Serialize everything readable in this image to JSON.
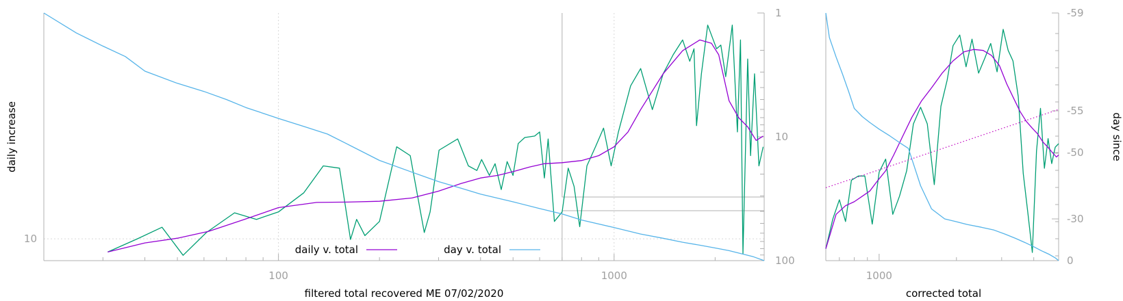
{
  "chart_data": [
    {
      "type": "line",
      "panel": "main",
      "xlabel": "filtered total recovered ME 07/02/2020",
      "ylabel": "daily increase",
      "y2label": "",
      "x_scale": "log",
      "y_scale": "log",
      "xlim": [
        20,
        2800
      ],
      "ylim": [
        7.2,
        300
      ],
      "x_ticks": [
        100,
        1000
      ],
      "x_tick_labels": [
        "100",
        "1000"
      ],
      "y_ticks": [
        10
      ],
      "y_tick_labels": [
        "10"
      ],
      "y2_ticks": [
        1,
        10,
        100
      ],
      "y2_tick_labels": [
        "1",
        "10",
        "100"
      ],
      "y2lim_reversed": [
        1,
        100
      ],
      "grid": true,
      "legend": {
        "position": "bottom-center",
        "entries": [
          "daily v. total",
          "day v. total"
        ]
      },
      "series": [
        {
          "name": "",
          "color": "#009e73",
          "axis": "y",
          "x": [
            31,
            38,
            45,
            52,
            61,
            74,
            86,
            100,
            119,
            136,
            152,
            164,
            171,
            181,
            200,
            225,
            247,
            272,
            283,
            301,
            342,
            368,
            390,
            403,
            425,
            442,
            461,
            480,
            500,
            518,
            542,
            580,
            600,
            620,
            636,
            664,
            700,
            730,
            760,
            790,
            830,
            880,
            930,
            980,
            1030,
            1120,
            1200,
            1300,
            1400,
            1500,
            1600,
            1680,
            1730,
            1760,
            1820,
            1900,
            2020,
            2080,
            2150,
            2250,
            2330,
            2380,
            2420,
            2500,
            2550,
            2620,
            2700,
            2780
          ],
          "y": [
            8.2,
            10,
            11.9,
            7.8,
            11,
            14.8,
            13.4,
            15,
            20,
            30,
            29,
            9.9,
            13.4,
            10.5,
            13,
            40,
            35,
            11,
            15,
            38,
            45,
            30,
            28,
            33,
            26,
            31,
            21,
            32,
            26,
            42,
            46,
            47,
            50,
            25,
            45,
            13,
            15,
            29,
            22,
            12,
            30,
            40,
            53,
            30,
            50,
            100,
            130,
            70,
            120,
            160,
            200,
            145,
            175,
            55,
            120,
            250,
            175,
            185,
            115,
            250,
            50,
            200,
            8,
            150,
            35,
            120,
            30,
            40
          ]
        },
        {
          "name": "daily v. total",
          "color": "#9400d3",
          "axis": "y",
          "x": [
            31,
            40,
            50,
            62,
            80,
            100,
            130,
            160,
            200,
            250,
            300,
            350,
            400,
            450,
            500,
            560,
            620,
            700,
            800,
            900,
            1000,
            1100,
            1200,
            1400,
            1600,
            1800,
            1950,
            2050,
            2200,
            2350,
            2500,
            2650,
            2780
          ],
          "y": [
            8.2,
            9.4,
            10.1,
            11.2,
            13.5,
            16,
            17.3,
            17.4,
            17.6,
            18.5,
            20.5,
            23,
            25,
            26,
            27.5,
            29.5,
            31,
            31.5,
            32.5,
            35,
            40,
            50,
            70,
            120,
            170,
            200,
            190,
            160,
            80,
            62,
            54,
            44,
            47
          ]
        },
        {
          "name": "day v. total",
          "color": "#56b4e9",
          "axis": "y2",
          "x": [
            20,
            25,
            30,
            35,
            40,
            50,
            60,
            70,
            80,
            100,
            120,
            140,
            160,
            200,
            250,
            300,
            350,
            400,
            500,
            600,
            700,
            800,
            1000,
            1200,
            1400,
            1600,
            1800,
            2000,
            2200,
            2400,
            2600,
            2800
          ],
          "y": [
            1,
            1.45,
            1.85,
            2.25,
            2.95,
            3.7,
            4.3,
            5,
            5.8,
            7.1,
            8.3,
            9.5,
            11.4,
            15.5,
            19.3,
            23,
            26,
            29,
            33.5,
            38,
            42,
            47,
            54,
            61,
            66,
            71,
            75,
            79,
            83,
            88,
            93,
            100
          ]
        }
      ]
    },
    {
      "type": "line",
      "panel": "right",
      "xlabel": "corrected total",
      "ylabel": "",
      "y2label": "day since",
      "x_scale": "log",
      "xlim": [
        620,
        5000
      ],
      "x_ticks": [
        1000
      ],
      "x_tick_labels": [
        "1000"
      ],
      "y_scale": "log",
      "ylim": [
        8.5,
        250
      ],
      "y2_ticks": [
        -59,
        -55,
        -50,
        -30,
        0
      ],
      "y2_tick_labels": [
        "-59",
        "-55",
        "-50",
        "-30",
        "0"
      ],
      "grid": false,
      "series": [
        {
          "name": "",
          "color": "#009e73",
          "axis": "y",
          "x": [
            620,
            660,
            700,
            740,
            780,
            830,
            880,
            940,
            1000,
            1060,
            1130,
            1200,
            1280,
            1360,
            1450,
            1540,
            1640,
            1740,
            1840,
            1940,
            2060,
            2180,
            2300,
            2440,
            2580,
            2720,
            2880,
            3040,
            3180,
            3320,
            3480,
            3640,
            3800,
            3950,
            4100,
            4250,
            4400,
            4550,
            4700,
            4850,
            5000
          ],
          "y": [
            10,
            15,
            19.5,
            14.5,
            25.5,
            27,
            27,
            14,
            28.5,
            34,
            16,
            20.5,
            29,
            55,
            69,
            55,
            24,
            70,
            100,
            160,
            185,
            120,
            175,
            110,
            135,
            165,
            112,
            200,
            150,
            130,
            80,
            28,
            16,
            9.5,
            38,
            68,
            30,
            45,
            32,
            40,
            42
          ]
        },
        {
          "name": "",
          "color": "#9400d3",
          "axis": "y",
          "x": [
            620,
            680,
            740,
            800,
            860,
            920,
            980,
            1060,
            1140,
            1240,
            1340,
            1460,
            1600,
            1760,
            1940,
            2140,
            2340,
            2540,
            2740,
            2940,
            3140,
            3340,
            3540,
            3740,
            3940,
            4140,
            4340,
            4540,
            4740,
            4900,
            5000
          ],
          "y": [
            10,
            16,
            18,
            19,
            20.5,
            22,
            25,
            29,
            36,
            47,
            60,
            75,
            90,
            110,
            130,
            147,
            152,
            150,
            140,
            122,
            95,
            78,
            65,
            57,
            52,
            48,
            43,
            40,
            37,
            35,
            36
          ]
        },
        {
          "name": "",
          "color": "#56b4e9",
          "axis": "y2",
          "x": [
            620,
            640,
            680,
            720,
            760,
            800,
            860,
            920,
            1000,
            1100,
            1200,
            1300,
            1450,
            1600,
            1800,
            2000,
            2200,
            2500,
            2800,
            3100,
            3400,
            3700,
            4000,
            4300,
            4600,
            4850,
            5000
          ],
          "y": [
            -59,
            -58,
            -57.2,
            -56.5,
            -55.8,
            -55.1,
            -54.3,
            -53.6,
            -52.8,
            -52,
            -51.2,
            -50.5,
            -40,
            -33,
            -30,
            -28,
            -26,
            -24,
            -22,
            -19,
            -16,
            -13,
            -10,
            -7,
            -4.5,
            -2,
            0
          ]
        },
        {
          "name": "",
          "color": "#c000c0",
          "axis": "y",
          "style": "dotted",
          "x": [
            620,
            5000
          ],
          "y": [
            23,
            67
          ]
        }
      ]
    }
  ]
}
